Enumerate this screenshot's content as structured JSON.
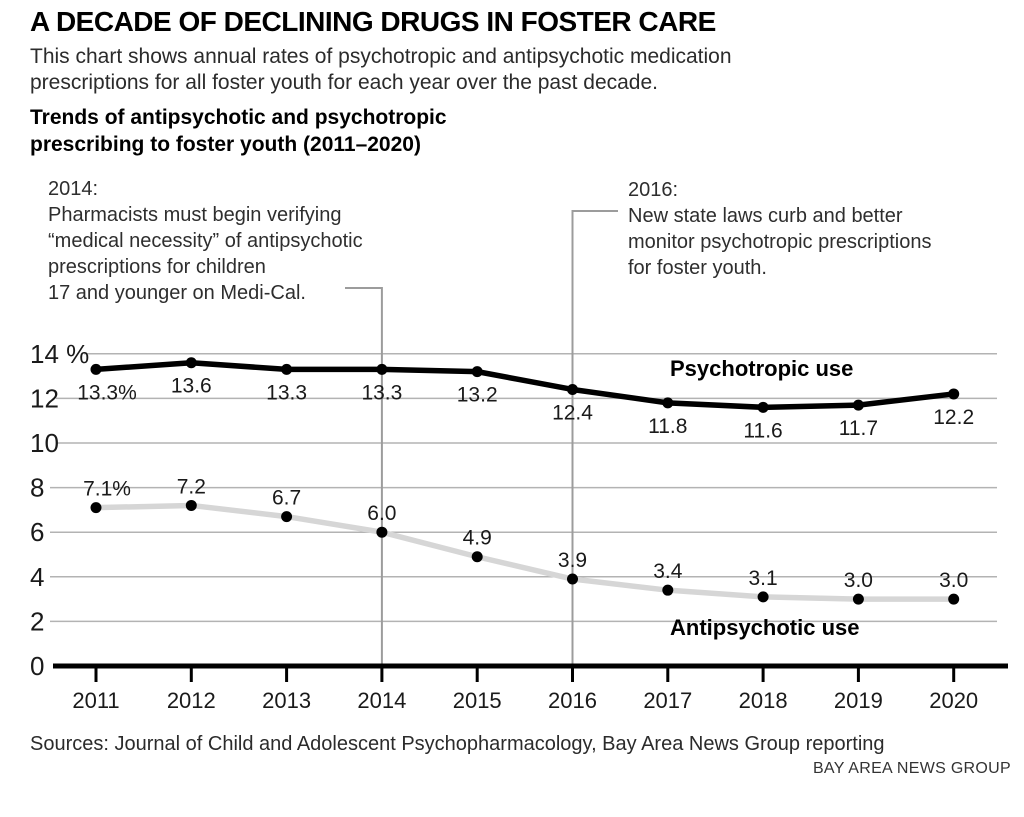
{
  "header": {
    "title": "A DECADE OF DECLINING DRUGS IN FOSTER CARE",
    "subtitle": "This chart shows annual rates of psychotropic and antipsychotic medication prescriptions for all foster youth for each year over the past decade.",
    "chart_title": "Trends of antipsychotic and psychotropic prescribing to foster youth (2011–2020)"
  },
  "annotations": [
    {
      "year": 2014,
      "lines": [
        "2014:",
        "Pharmacists must begin verifying",
        "“medical necessity” of antipsychotic",
        "prescriptions for children",
        "17 and younger on Medi-Cal."
      ]
    },
    {
      "year": 2016,
      "lines": [
        "2016:",
        "New state laws curb and better",
        "monitor psychotropic prescriptions",
        "for foster youth."
      ]
    }
  ],
  "chart_data": {
    "type": "line",
    "x": [
      2011,
      2012,
      2013,
      2014,
      2015,
      2016,
      2017,
      2018,
      2019,
      2020
    ],
    "series": [
      {
        "name": "Psychotropic use",
        "values": [
          13.3,
          13.6,
          13.3,
          13.3,
          13.2,
          12.4,
          11.8,
          11.6,
          11.7,
          12.2
        ],
        "point_labels": [
          "13.3%",
          "13.6",
          "13.3",
          "13.3",
          "13.2",
          "12.4",
          "11.8",
          "11.6",
          "11.7",
          "12.2"
        ],
        "color": "#000000",
        "label_position": "below"
      },
      {
        "name": "Antipsychotic use",
        "values": [
          7.1,
          7.2,
          6.7,
          6.0,
          4.9,
          3.9,
          3.4,
          3.1,
          3.0,
          3.0
        ],
        "point_labels": [
          "7.1%",
          "7.2",
          "6.7",
          "6.0",
          "4.9",
          "3.9",
          "3.4",
          "3.1",
          "3.0",
          "3.0"
        ],
        "color": "#d6d6d6",
        "label_position": "above"
      }
    ],
    "ylim": [
      0,
      14
    ],
    "ytick_step": 2,
    "ytick_labels": [
      "0",
      "2",
      "4",
      "6",
      "8",
      "10",
      "12",
      "14 %"
    ],
    "grid": true,
    "legend_position": "inline-on-chart",
    "marker_color": "#000000",
    "gridline_color": "#b3b3b3",
    "annotation_line_color": "#9c9c9c",
    "axis_color": "#000000",
    "text_color": "#1a1a1a"
  },
  "footer": {
    "sources": "Sources: Journal of Child and Adolescent Psychopharmacology, Bay Area News Group reporting",
    "credit": "BAY AREA NEWS GROUP"
  }
}
